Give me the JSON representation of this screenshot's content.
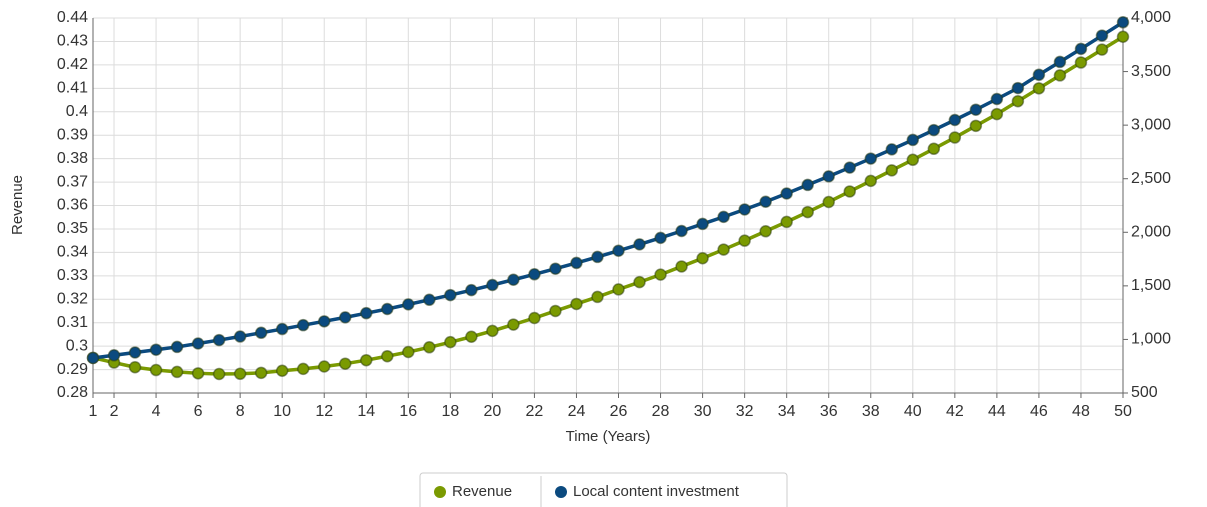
{
  "chart_data": {
    "type": "line",
    "x_label": "Time (Years)",
    "y_label": "Revenue",
    "x": [
      1,
      2,
      3,
      4,
      5,
      6,
      7,
      8,
      9,
      10,
      11,
      12,
      13,
      14,
      15,
      16,
      17,
      18,
      19,
      20,
      21,
      22,
      23,
      24,
      25,
      26,
      27,
      28,
      29,
      30,
      31,
      32,
      33,
      34,
      35,
      36,
      37,
      38,
      39,
      40,
      41,
      42,
      43,
      44,
      45,
      46,
      47,
      48,
      49,
      50
    ],
    "xlim": [
      1,
      50
    ],
    "xticks": [
      1,
      2,
      4,
      6,
      8,
      10,
      12,
      14,
      16,
      18,
      20,
      22,
      24,
      26,
      28,
      30,
      32,
      34,
      36,
      38,
      40,
      42,
      44,
      46,
      48,
      50
    ],
    "ylim": [
      0.28,
      0.44
    ],
    "yticks": [
      0.28,
      0.29,
      0.3,
      0.31,
      0.32,
      0.33,
      0.34,
      0.35,
      0.36,
      0.37,
      0.38,
      0.39,
      0.4,
      0.41,
      0.42,
      0.43,
      0.44
    ],
    "y2lim": [
      500,
      4000
    ],
    "y2ticks": [
      500,
      {
        "value": 1000,
        "label": "1,000"
      },
      {
        "value": 1500,
        "label": "1,500"
      },
      {
        "value": 2000,
        "label": "2,000"
      },
      {
        "value": 2500,
        "label": "2,500"
      },
      {
        "value": 3000,
        "label": "3,000"
      },
      {
        "value": 3500,
        "label": "3,500"
      },
      {
        "value": 4000,
        "label": "4,000"
      }
    ],
    "grid": true,
    "legend": "bottom",
    "series": [
      {
        "name": "Revenue",
        "color": "#7a9a01",
        "values": [
          0.295,
          0.293,
          0.291,
          0.2898,
          0.289,
          0.2884,
          0.2881,
          0.2882,
          0.2886,
          0.2895,
          0.2903,
          0.2913,
          0.2925,
          0.294,
          0.2957,
          0.2975,
          0.2995,
          0.3017,
          0.304,
          0.3065,
          0.3092,
          0.312,
          0.315,
          0.318,
          0.321,
          0.3242,
          0.3273,
          0.3305,
          0.334,
          0.3375,
          0.3412,
          0.345,
          0.349,
          0.353,
          0.3572,
          0.3615,
          0.366,
          0.3705,
          0.375,
          0.3795,
          0.3842,
          0.389,
          0.394,
          0.399,
          0.4045,
          0.41,
          0.4155,
          0.421,
          0.4265,
          0.432
        ]
      },
      {
        "name": "Local content investment",
        "color": "#0b4a7f",
        "axis": "y2",
        "values": [
          827,
          852,
          878,
          904,
          930,
          962,
          994,
          1027,
          1062,
          1097,
          1133,
          1169,
          1206,
          1245,
          1284,
          1327,
          1370,
          1414,
          1460,
          1508,
          1557,
          1608,
          1660,
          1714,
          1770,
          1828,
          1887,
          1948,
          2012,
          2078,
          2144,
          2213,
          2285,
          2362,
          2442,
          2522,
          2604,
          2688,
          2774,
          2862,
          2954,
          3048,
          3144,
          3244,
          3346,
          3470,
          3590,
          3712,
          3836,
          3960
        ]
      }
    ]
  }
}
